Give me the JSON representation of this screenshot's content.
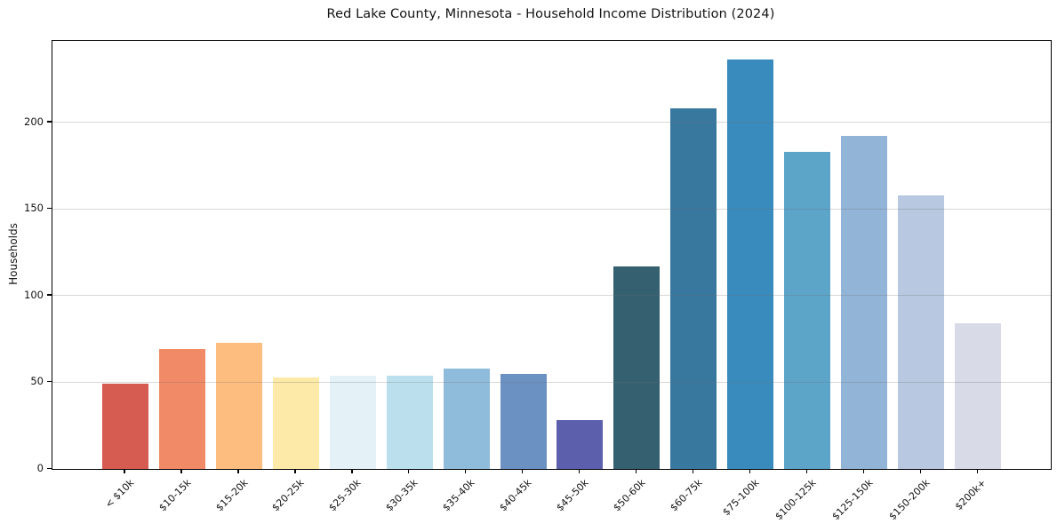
{
  "window": {
    "background": "#ffffff"
  },
  "chart_data": {
    "type": "bar",
    "title": "Red Lake County, Minnesota - Household Income Distribution (2024)",
    "xlabel": "",
    "ylabel": "Households",
    "categories": [
      "< $10k",
      "$10-15k",
      "$15-20k",
      "$20-25k",
      "$25-30k",
      "$30-35k",
      "$35-40k",
      "$40-45k",
      "$45-50k",
      "$50-60k",
      "$60-75k",
      "$75-100k",
      "$100-125k",
      "$125-150k",
      "$150-200k",
      "$200k+"
    ],
    "values": [
      49,
      69,
      73,
      53,
      54,
      54,
      58,
      55,
      28,
      117,
      208,
      236,
      183,
      192,
      158,
      84
    ],
    "bar_colors": [
      "#d65b50",
      "#f18a66",
      "#fcbd7e",
      "#fde9a8",
      "#e4f1f7",
      "#bbdfec",
      "#90bcdb",
      "#6b91c3",
      "#5c5fac",
      "#35606f",
      "#38789f",
      "#398bbd",
      "#5ca4c8",
      "#92b4d7",
      "#b7c8e0",
      "#d8dae7"
    ],
    "yticks": [
      0,
      50,
      100,
      150,
      200
    ],
    "ylim": [
      0,
      247
    ],
    "grid": "horizontal",
    "grid_on": true,
    "legend": "none",
    "axis_color": "#000000",
    "text_color": "#141414",
    "grid_color": "rgba(110,110,110,0.28)"
  }
}
